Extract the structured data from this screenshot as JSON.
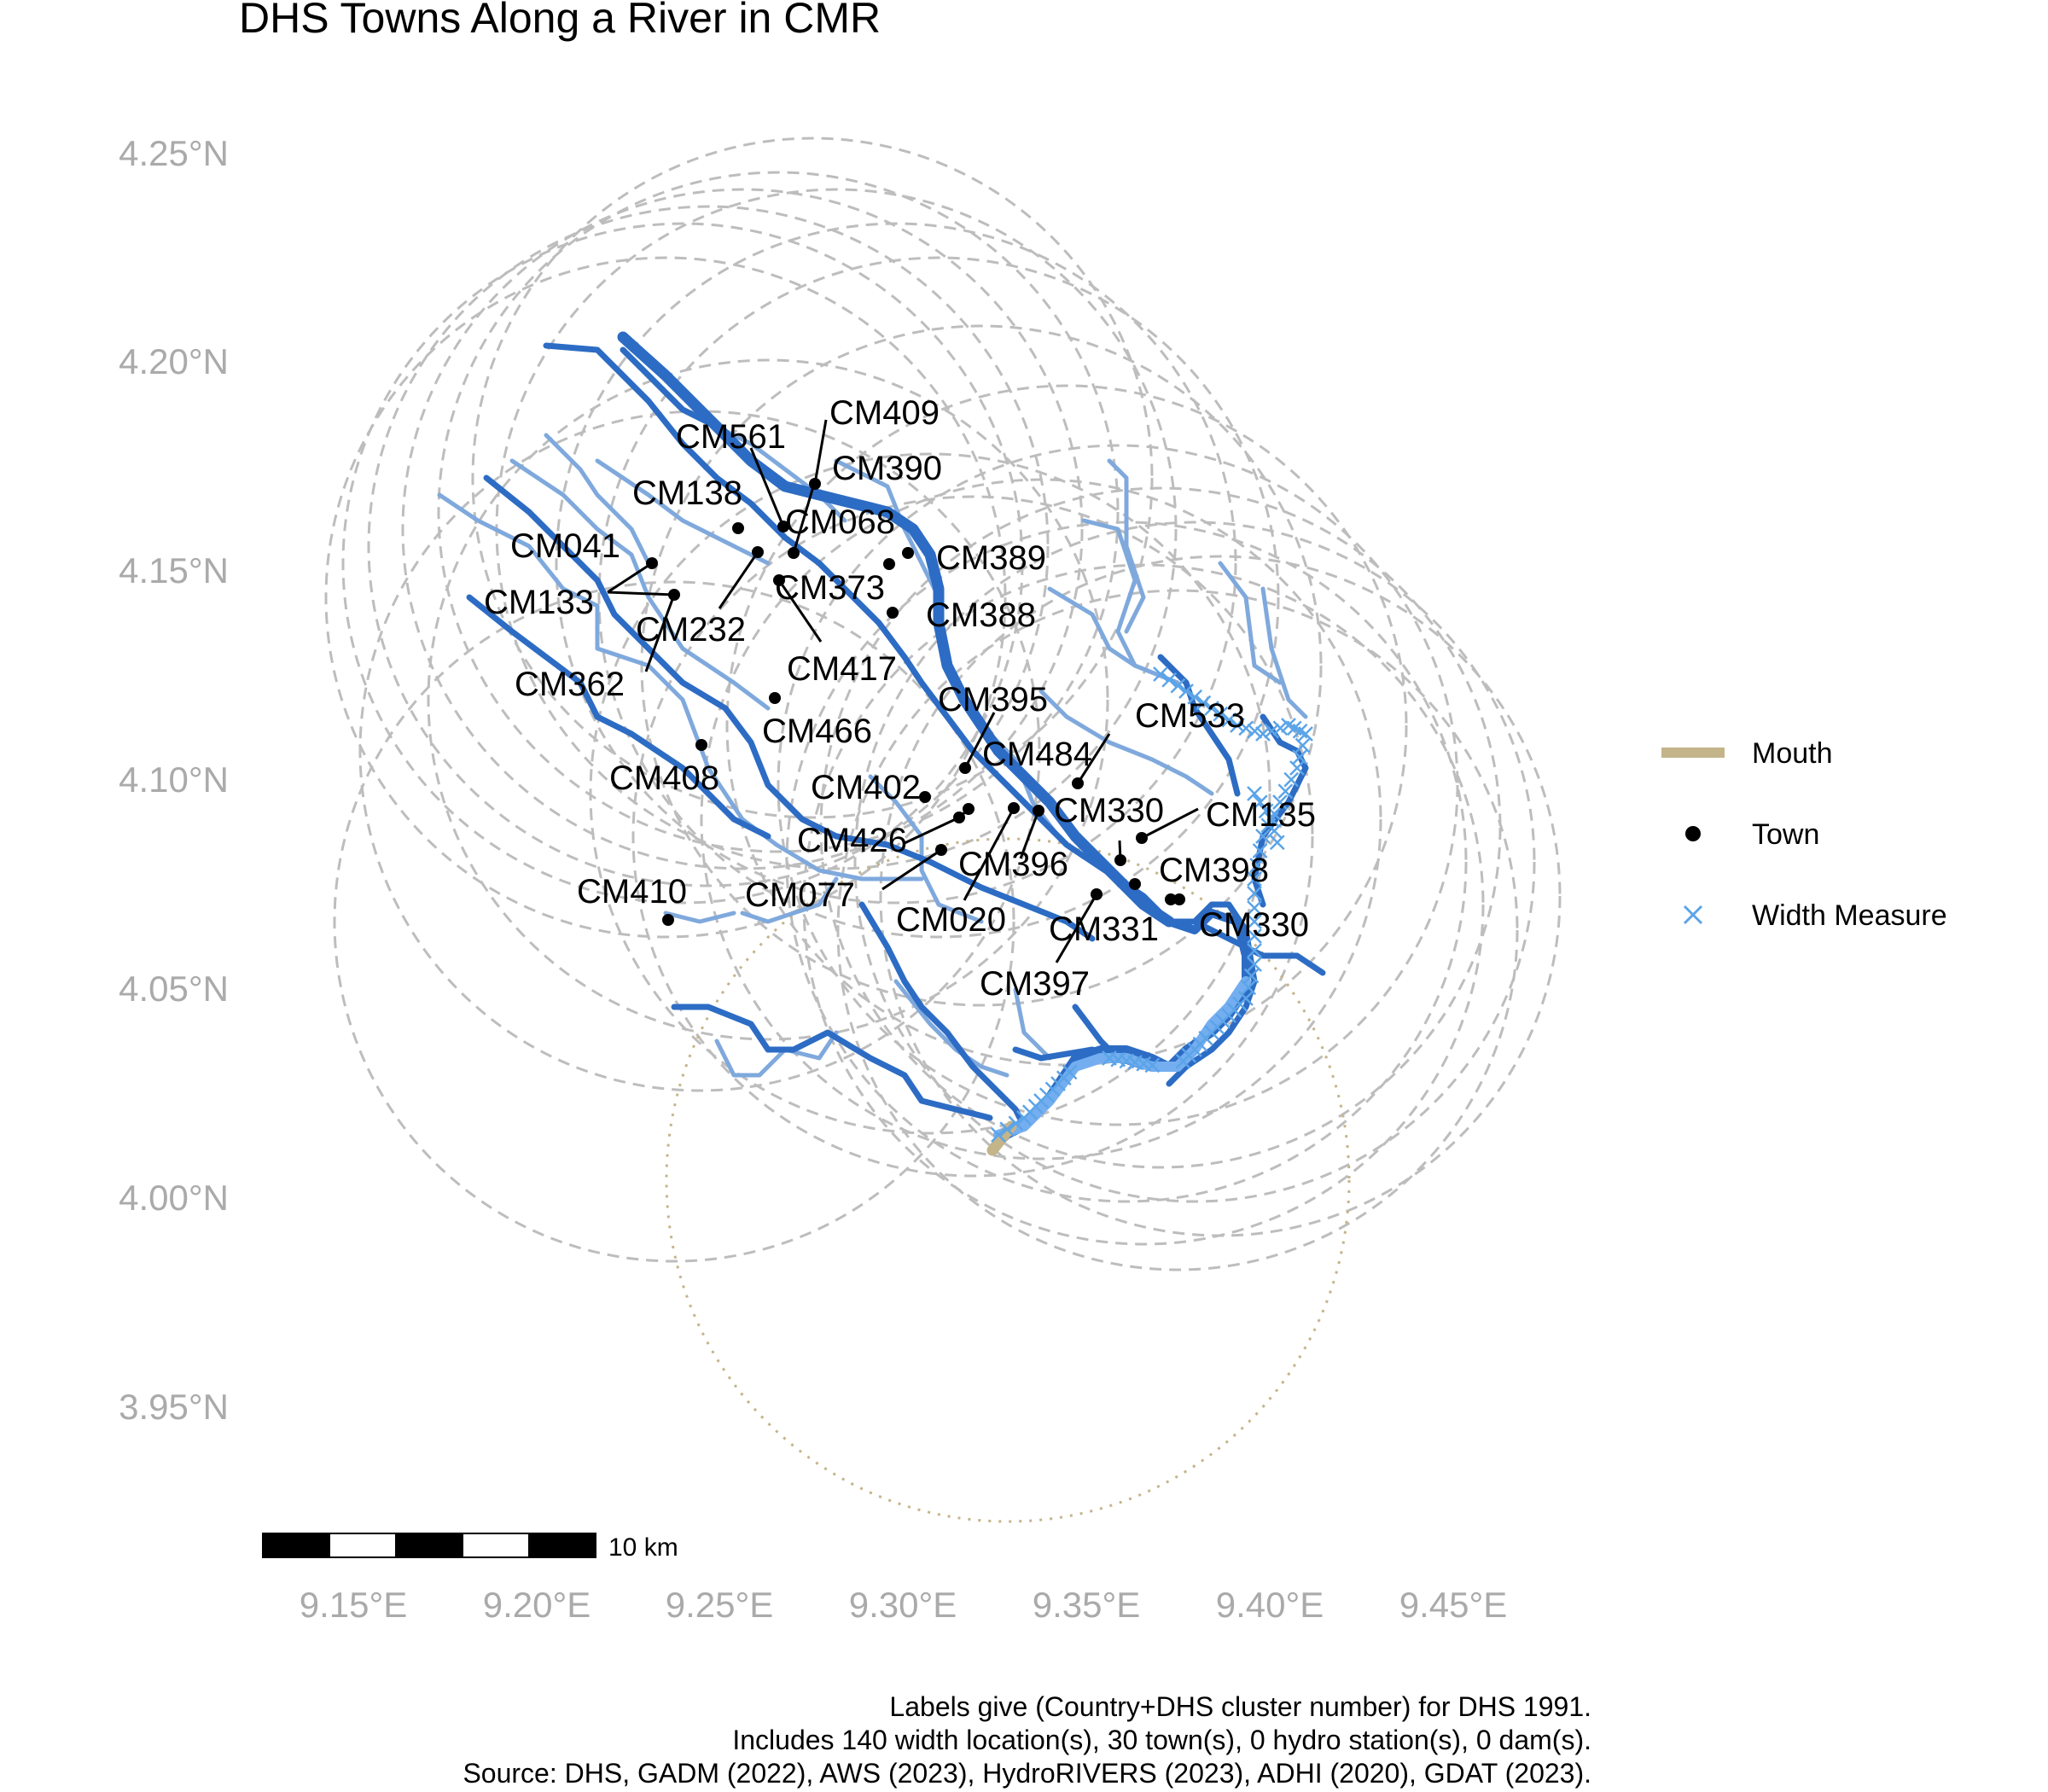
{
  "title": "DHS Towns Along a River in CMR",
  "axes": {
    "y_ticks": [
      "4.25°N",
      "4.20°N",
      "4.15°N",
      "4.10°N",
      "4.05°N",
      "4.00°N",
      "3.95°N"
    ],
    "x_ticks": [
      "9.15°E",
      "9.20°E",
      "9.25°E",
      "9.30°E",
      "9.35°E",
      "9.40°E",
      "9.45°E"
    ]
  },
  "legend": {
    "items": [
      {
        "label": "Mouth",
        "symbol": "line",
        "color": "#c4b48a"
      },
      {
        "label": "Town",
        "symbol": "dot",
        "color": "#000000"
      },
      {
        "label": "Width Measure",
        "symbol": "cross",
        "color": "#5ba4e8"
      }
    ]
  },
  "scale_bar": {
    "label": "10 km"
  },
  "caption": [
    "Labels give (Country+DHS cluster number) for DHS 1991.",
    "Includes 140 width location(s), 30 town(s), 0 hydro station(s), 0 dam(s).",
    "Source: DHS, GADM (2022), AWS (2023), HydroRIVERS (2023), ADHI (2020), GDAT (2023)."
  ],
  "colors": {
    "river_main": "#2d6cc4",
    "river_minor": "#7fa9dd",
    "width_measure": "#5ba4e8",
    "mouth": "#c4b48a",
    "buffer": "#bdbdbd",
    "axis_text": "#aaaaaa"
  },
  "towns": [
    {
      "id": "CM409",
      "lon": 9.274,
      "lat": 4.17
    },
    {
      "id": "CM390",
      "lon": 9.268,
      "lat": 4.16
    },
    {
      "id": "CM561",
      "lon": 9.265,
      "lat": 4.158
    },
    {
      "id": "CM138",
      "lon": 9.254,
      "lat": 4.159
    },
    {
      "id": "CM068",
      "lon": 9.27,
      "lat": 4.154
    },
    {
      "id": "CM389",
      "lon": 9.307,
      "lat": 4.154
    },
    {
      "id": "CM041",
      "lon": 9.199,
      "lat": 4.151
    },
    {
      "id": "CM133",
      "lon": 9.208,
      "lat": 4.144
    },
    {
      "id": "CM232",
      "lon": 9.253,
      "lat": 4.154
    },
    {
      "id": "CM373",
      "lon": 9.265,
      "lat": 4.147
    },
    {
      "id": "CM388",
      "lon": 9.298,
      "lat": 4.14
    },
    {
      "id": "CM417",
      "lon": 9.264,
      "lat": 4.15
    },
    {
      "id": "CM362",
      "lon": 9.209,
      "lat": 4.143
    },
    {
      "id": "CM466",
      "lon": 9.265,
      "lat": 4.119
    },
    {
      "id": "CM395",
      "lon": 9.318,
      "lat": 4.102
    },
    {
      "id": "CM408",
      "lon": 9.244,
      "lat": 4.108
    },
    {
      "id": "CM484",
      "lon": 9.321,
      "lat": 4.091
    },
    {
      "id": "CM533",
      "lon": 9.349,
      "lat": 4.099
    },
    {
      "id": "CM402",
      "lon": 9.306,
      "lat": 4.094
    },
    {
      "id": "CM330",
      "lon": 9.36,
      "lat": 4.079
    },
    {
      "id": "CM135",
      "lon": 9.366,
      "lat": 4.084
    },
    {
      "id": "CM426",
      "lon": 9.315,
      "lat": 4.088
    },
    {
      "id": "CM396",
      "lon": 9.335,
      "lat": 4.091
    },
    {
      "id": "CM398",
      "lon": 9.364,
      "lat": 4.075
    },
    {
      "id": "CM410",
      "lon": 9.236,
      "lat": 4.066
    },
    {
      "id": "CM077",
      "lon": 9.31,
      "lat": 4.083
    },
    {
      "id": "CM020",
      "lon": 9.33,
      "lat": 4.092
    },
    {
      "id": "CM331",
      "lon": 9.354,
      "lat": 4.072
    },
    {
      "id": "CM330",
      "lon": 9.375,
      "lat": 4.071
    },
    {
      "id": "CM397",
      "lon": 9.373,
      "lat": 4.071
    }
  ]
}
